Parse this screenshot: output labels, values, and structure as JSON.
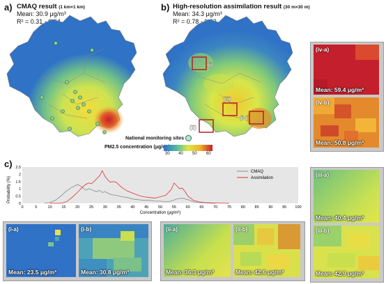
{
  "panel_a": {
    "letter": "a)",
    "title": "CMAQ result",
    "resolution": "(1 km×1 km)",
    "mean": "Mean: 30.9 μg/m³",
    "r2": "R² = 0.31 - 0.64"
  },
  "panel_b": {
    "letter": "b)",
    "title": "High-resolution assimilation result",
    "resolution": "(30 m×30 m)",
    "mean": "Mean: 34.3 μg/m³",
    "r2": "R² = 0.78 - 0.82",
    "box_labels": [
      "(i)",
      "(ii)",
      "(iii)",
      "(iv)"
    ]
  },
  "legend": {
    "sites_label": "National monitoring sites",
    "colorbar_title": "PM2.5 concentration (μg/m³)",
    "ticks": [
      "30",
      "40",
      "50",
      "60"
    ],
    "colors": [
      "#2f72c6",
      "#4fb6a3",
      "#d9e84a",
      "#f0b02a",
      "#c2202a"
    ]
  },
  "panel_c": {
    "letter": "c)",
    "ylabel": "Probability (%)",
    "xlabel": "Concentration (μg/m³)"
  },
  "chart_data": {
    "type": "line",
    "xlabel": "Concentration (μg/m³)",
    "ylabel": "Probability (%)",
    "xlim": [
      0,
      100
    ],
    "ylim": [
      0,
      2.5
    ],
    "xticks": [
      0,
      5,
      10,
      15,
      20,
      25,
      30,
      35,
      40,
      45,
      50,
      55,
      60,
      65,
      70,
      75,
      80,
      85,
      90,
      95,
      100
    ],
    "yticks": [
      0,
      0.5,
      1,
      1.5,
      2,
      2.5
    ],
    "legend_position": "top-right",
    "series": [
      {
        "name": "CMAQ",
        "color": "#888888",
        "x": [
          8,
          10,
          12,
          14,
          16,
          18,
          20,
          21,
          22,
          23,
          24,
          25,
          26,
          27,
          28,
          29,
          30,
          31,
          32,
          34,
          36,
          38,
          40,
          42,
          44,
          46,
          48,
          50,
          52,
          54,
          56,
          58,
          60,
          62,
          64,
          66,
          68,
          70
        ],
        "y": [
          0,
          0.05,
          0.2,
          0.5,
          0.85,
          1.1,
          1.3,
          1.2,
          1.05,
          0.9,
          1.0,
          0.95,
          0.85,
          0.8,
          0.9,
          0.75,
          0.8,
          0.7,
          0.6,
          0.55,
          0.45,
          0.4,
          0.3,
          0.25,
          0.2,
          0.2,
          0.15,
          0.15,
          0.1,
          0.15,
          0.3,
          0.35,
          0.25,
          0.1,
          0.05,
          0.03,
          0.01,
          0
        ]
      },
      {
        "name": "Assimilation",
        "color": "#e03030",
        "x": [
          10,
          14,
          16,
          18,
          20,
          22,
          23,
          24,
          25,
          26,
          27,
          28,
          29,
          30,
          31,
          32,
          33,
          34,
          36,
          38,
          40,
          42,
          44,
          46,
          48,
          50,
          52,
          54,
          55,
          56,
          57,
          58,
          59,
          60,
          62,
          64,
          66,
          70,
          75
        ],
        "y": [
          0,
          0,
          0.1,
          0.4,
          0.75,
          1.15,
          1.3,
          1.4,
          1.35,
          1.5,
          1.7,
          1.9,
          2.25,
          1.85,
          1.6,
          1.45,
          1.5,
          1.45,
          1.1,
          0.85,
          0.7,
          0.55,
          0.45,
          0.4,
          0.35,
          0.45,
          0.55,
          0.95,
          1.4,
          1.2,
          1.0,
          1.05,
          0.8,
          0.5,
          0.2,
          0.1,
          0.05,
          0.02,
          0
        ]
      }
    ]
  },
  "insets": {
    "iv_a": {
      "label": "(iv-a)",
      "mean": "Mean: 59.4 μg/m³"
    },
    "iv_b": {
      "label": "(iv-b)",
      "mean": "Mean: 50.8 μg/m³"
    },
    "iii_a": {
      "label": "(iii-a)",
      "mean": "Mean: 40.4 μg/m³"
    },
    "iii_b": {
      "label": "(iii-b)",
      "mean": "Mean: 42.9 μg/m³"
    },
    "i_a": {
      "label": "(i-a)",
      "mean": "Mean: 23.5 μg/m³"
    },
    "i_b": {
      "label": "(i-b)",
      "mean": "Mean: 30.8 μg/m³"
    },
    "ii_a": {
      "label": "(ii-a)",
      "mean": "Mean: 36.3 μg/m³"
    },
    "ii_b": {
      "label": "(ii-b)",
      "mean": "Mean: 42.6 μg/m³"
    }
  }
}
